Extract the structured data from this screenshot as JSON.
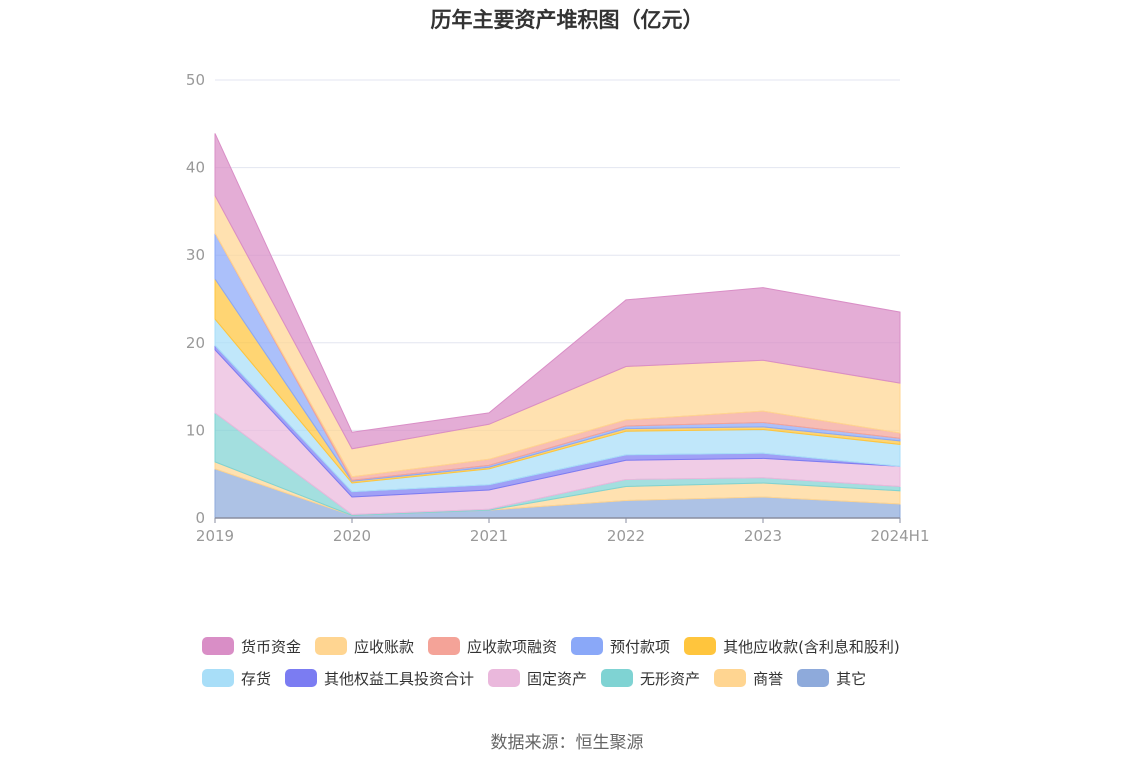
{
  "chart_data": {
    "type": "area",
    "stacked": true,
    "title": "历年主要资产堆积图（亿元）",
    "x": [
      "2019",
      "2020",
      "2021",
      "2022",
      "2023",
      "2024H1"
    ],
    "y_ticks": [
      0,
      10,
      20,
      30,
      40,
      50
    ],
    "ylim": [
      0,
      50
    ],
    "grid": true,
    "legend_position": "bottom",
    "source": "数据来源：恒生聚源",
    "series": [
      {
        "name": "其它",
        "color": "#8eaadb",
        "values": [
          5.6,
          0.3,
          0.9,
          2.0,
          2.4,
          1.6
        ]
      },
      {
        "name": "商誉",
        "color": "#ffd591",
        "values": [
          0.8,
          0.0,
          0.0,
          1.6,
          1.6,
          1.5
        ]
      },
      {
        "name": "无形资产",
        "color": "#7fd3d3",
        "values": [
          5.6,
          0.1,
          0.1,
          0.8,
          0.6,
          0.5
        ]
      },
      {
        "name": "固定资产",
        "color": "#eab8dc",
        "values": [
          7.2,
          2.0,
          2.2,
          2.2,
          2.2,
          2.3
        ]
      },
      {
        "name": "其他权益工具投资合计",
        "color": "#7b7cf2",
        "values": [
          0.5,
          0.6,
          0.6,
          0.6,
          0.6,
          0.0
        ]
      },
      {
        "name": "存货",
        "color": "#a8def8",
        "values": [
          3.0,
          1.0,
          1.8,
          2.7,
          2.7,
          2.5
        ]
      },
      {
        "name": "其他应收款(含利息和股利)",
        "color": "#ffc53d",
        "values": [
          4.6,
          0.2,
          0.2,
          0.3,
          0.3,
          0.4
        ]
      },
      {
        "name": "预付款项",
        "color": "#8aa8f8",
        "values": [
          5.2,
          0.1,
          0.2,
          0.3,
          0.5,
          0.3
        ]
      },
      {
        "name": "应收款项融资",
        "color": "#f4a398",
        "values": [
          0.0,
          0.4,
          0.7,
          0.7,
          1.3,
          0.6
        ]
      },
      {
        "name": "应收账款",
        "color": "#ffd591",
        "values": [
          4.3,
          3.2,
          4.0,
          6.1,
          5.8,
          5.7
        ]
      },
      {
        "name": "货币资金",
        "color": "#d98ec6",
        "values": [
          7.1,
          1.9,
          1.3,
          7.6,
          8.3,
          8.1
        ]
      }
    ]
  },
  "legend": {
    "rows": [
      [
        {
          "name": "货币资金",
          "color": "#d98ec6"
        },
        {
          "name": "应收账款",
          "color": "#ffd591"
        },
        {
          "name": "应收款项融资",
          "color": "#f4a398"
        },
        {
          "name": "预付款项",
          "color": "#8aa8f8"
        },
        {
          "name": "其他应收款(含利息和股利)",
          "color": "#ffc53d"
        }
      ],
      [
        {
          "name": "存货",
          "color": "#a8def8"
        },
        {
          "name": "其他权益工具投资合计",
          "color": "#7b7cf2"
        },
        {
          "name": "固定资产",
          "color": "#eab8dc"
        },
        {
          "name": "无形资产",
          "color": "#7fd3d3"
        },
        {
          "name": "商誉",
          "color": "#ffd591"
        },
        {
          "name": "其它",
          "color": "#8eaadb"
        }
      ]
    ]
  }
}
